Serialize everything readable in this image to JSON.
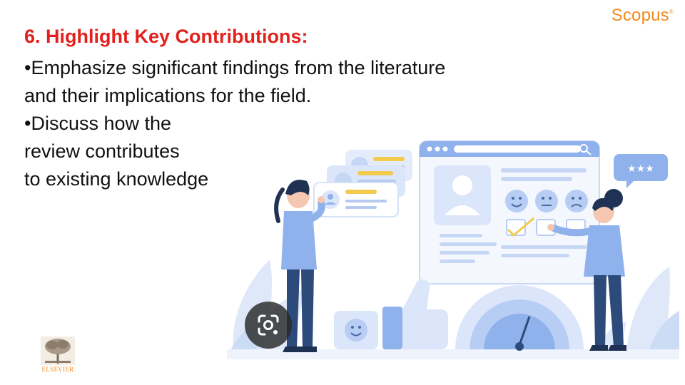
{
  "header": {
    "brand_logo": "Scopus",
    "brand_mark": "®"
  },
  "slide": {
    "heading": "6. Highlight Key Contributions:",
    "bullet_lines": [
      "•Emphasize significant findings from the literature",
      "and their implications for the field.",
      "•Discuss how the",
      "review contributes",
      "to existing knowledge"
    ]
  },
  "illustration": {
    "rating_stars": "★★★"
  },
  "overlay": {
    "lens_button_icon": "google-lens-icon"
  },
  "footer": {
    "publisher_logo": "ELSEVIER"
  },
  "colors": {
    "heading": "#e2211c",
    "brand": "#f08a1c",
    "illustration_primary": "#8fb1ec",
    "illustration_dark": "#2c4a7a"
  }
}
